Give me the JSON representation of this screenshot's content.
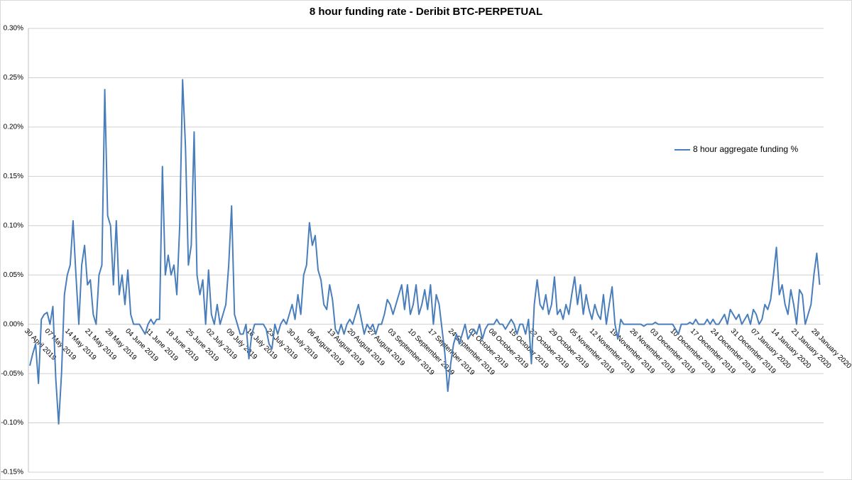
{
  "chart_data": {
    "type": "line",
    "title": "8 hour funding rate - Deribit BTC-PERPETUAL",
    "categories": [
      "30 April 2019",
      null,
      null,
      null,
      null,
      null,
      null,
      "07 May 2019",
      null,
      null,
      null,
      null,
      null,
      null,
      "14 May 2019",
      null,
      null,
      null,
      null,
      null,
      null,
      "21 May 2019",
      null,
      null,
      null,
      null,
      null,
      null,
      "28 May 2019",
      null,
      null,
      null,
      null,
      null,
      null,
      "04 June 2019",
      null,
      null,
      null,
      null,
      null,
      null,
      "11 June 2019",
      null,
      null,
      null,
      null,
      null,
      null,
      "18 June 2019",
      null,
      null,
      null,
      null,
      null,
      null,
      "25 June 2019",
      null,
      null,
      null,
      null,
      null,
      null,
      "02 July 2019",
      null,
      null,
      null,
      null,
      null,
      null,
      "09 July 2019",
      null,
      null,
      null,
      null,
      null,
      null,
      "16 July 2019",
      null,
      null,
      null,
      null,
      null,
      null,
      "23 July 2019",
      null,
      null,
      null,
      null,
      null,
      null,
      "30 July 2019",
      null,
      null,
      null,
      null,
      null,
      null,
      "06 August 2019",
      null,
      null,
      null,
      null,
      null,
      null,
      "13 August 2019",
      null,
      null,
      null,
      null,
      null,
      null,
      "20 August 2019",
      null,
      null,
      null,
      null,
      null,
      null,
      "27 August 2019",
      null,
      null,
      null,
      null,
      null,
      null,
      "03 September 2019",
      null,
      null,
      null,
      null,
      null,
      null,
      "10 September 2019",
      null,
      null,
      null,
      null,
      null,
      null,
      "17 September 2019",
      null,
      null,
      null,
      null,
      null,
      null,
      "24 September 2019",
      null,
      null,
      null,
      null,
      null,
      null,
      "01 October 2019",
      null,
      null,
      null,
      null,
      null,
      null,
      "08 October 2019",
      null,
      null,
      null,
      null,
      null,
      null,
      "15 October 2019",
      null,
      null,
      null,
      null,
      null,
      null,
      "22 October 2019",
      null,
      null,
      null,
      null,
      null,
      null,
      "29 October 2019",
      null,
      null,
      null,
      null,
      null,
      null,
      "05 November 2019",
      null,
      null,
      null,
      null,
      null,
      null,
      "12 November 2019",
      null,
      null,
      null,
      null,
      null,
      null,
      "19 November 2019",
      null,
      null,
      null,
      null,
      null,
      null,
      "26 November 2019",
      null,
      null,
      null,
      null,
      null,
      null,
      "03 December 2019",
      null,
      null,
      null,
      null,
      null,
      null,
      "10 December 2019",
      null,
      null,
      null,
      null,
      null,
      null,
      "17 December 2019",
      null,
      null,
      null,
      null,
      null,
      null,
      "24 December 2019",
      null,
      null,
      null,
      null,
      null,
      null,
      "31 December 2019",
      null,
      null,
      null,
      null,
      null,
      null,
      "07 January 2020",
      null,
      null,
      null,
      null,
      null,
      null,
      "14 January 2020",
      null,
      null,
      null,
      null,
      null,
      null,
      "21 January 2020",
      null,
      null,
      null,
      null,
      null,
      null,
      "28 January 2020",
      null
    ],
    "series": [
      {
        "name": "8 hour aggregate funding %",
        "color": "#4a7ebb",
        "values": [
          -0.042,
          -0.03,
          -0.02,
          -0.06,
          0.005,
          0.01,
          0.012,
          0.0,
          0.018,
          -0.055,
          -0.101,
          -0.05,
          0.03,
          0.05,
          0.06,
          0.105,
          0.05,
          0.0,
          0.06,
          0.08,
          0.04,
          0.045,
          0.01,
          0.0,
          0.05,
          0.06,
          0.238,
          0.11,
          0.1,
          0.04,
          0.105,
          0.03,
          0.05,
          0.02,
          0.055,
          0.01,
          0.0,
          0.0,
          0.0,
          -0.005,
          -0.01,
          0.0,
          0.005,
          0.0,
          0.005,
          0.005,
          0.16,
          0.05,
          0.07,
          0.05,
          0.06,
          0.03,
          0.1,
          0.248,
          0.18,
          0.06,
          0.08,
          0.195,
          0.05,
          0.03,
          0.045,
          0.0,
          0.055,
          0.01,
          0.0,
          0.02,
          0.0,
          0.01,
          0.02,
          0.06,
          0.12,
          0.01,
          0.0,
          -0.01,
          -0.01,
          0.0,
          -0.035,
          -0.01,
          0.0,
          0.0,
          0.0,
          0.0,
          -0.005,
          -0.02,
          -0.025,
          0.0,
          -0.01,
          0.0,
          0.005,
          0.0,
          0.01,
          0.02,
          0.005,
          0.03,
          0.01,
          0.05,
          0.06,
          0.103,
          0.08,
          0.09,
          0.055,
          0.045,
          0.02,
          0.015,
          0.04,
          0.025,
          -0.005,
          -0.01,
          0.0,
          -0.01,
          0.0,
          0.005,
          0.0,
          0.01,
          0.02,
          0.005,
          -0.01,
          0.0,
          -0.005,
          0.0,
          -0.01,
          0.0,
          0.0,
          0.01,
          0.025,
          0.02,
          0.01,
          0.02,
          0.03,
          0.04,
          0.015,
          0.04,
          0.01,
          0.02,
          0.04,
          0.01,
          0.02,
          0.035,
          0.015,
          0.04,
          0.0,
          0.03,
          0.02,
          -0.005,
          -0.03,
          -0.068,
          -0.04,
          -0.02,
          -0.01,
          -0.02,
          -0.01,
          0.0,
          -0.015,
          -0.01,
          -0.005,
          -0.01,
          0.0,
          -0.015,
          -0.005,
          0.0,
          0.0,
          0.0,
          0.005,
          0.0,
          0.0,
          -0.005,
          0.0,
          0.005,
          0.0,
          -0.01,
          0.0,
          0.0,
          -0.01,
          0.005,
          -0.04,
          0.02,
          0.045,
          0.02,
          0.015,
          0.03,
          0.01,
          0.02,
          0.048,
          0.01,
          0.015,
          0.005,
          0.02,
          0.01,
          0.03,
          0.048,
          0.02,
          0.04,
          0.01,
          0.03,
          0.015,
          0.005,
          0.02,
          0.01,
          0.005,
          0.03,
          0.0,
          0.02,
          0.038,
          0.0,
          -0.015,
          0.005,
          0.0,
          0.0,
          0.0,
          0.0,
          0.0,
          0.0,
          0.0,
          -0.002,
          0.0,
          0.0,
          0.0,
          0.002,
          0.0,
          0.0,
          0.0,
          0.0,
          0.0,
          0.0,
          -0.005,
          -0.01,
          0.0,
          0.0,
          0.0,
          0.002,
          0.0,
          0.005,
          0.0,
          0.0,
          0.0,
          0.005,
          0.0,
          0.005,
          0.0,
          0.0,
          0.005,
          0.01,
          0.0,
          0.015,
          0.01,
          0.005,
          0.01,
          0.0,
          0.005,
          0.01,
          0.0,
          0.015,
          0.01,
          0.0,
          0.005,
          0.02,
          0.015,
          0.025,
          0.05,
          0.078,
          0.03,
          0.04,
          0.02,
          0.01,
          0.035,
          0.02,
          0.0,
          0.035,
          0.03,
          0.0,
          0.01,
          0.02,
          0.05,
          0.072,
          0.04
        ]
      }
    ],
    "ylim": [
      -0.15,
      0.3
    ],
    "yticks": [
      {
        "value": -0.15,
        "label": "-0.15%"
      },
      {
        "value": -0.1,
        "label": "-0.10%"
      },
      {
        "value": -0.05,
        "label": "-0.05%"
      },
      {
        "value": 0,
        "label": "0.00%"
      },
      {
        "value": 0.05,
        "label": "0.05%"
      },
      {
        "value": 0.1,
        "label": "0.10%"
      },
      {
        "value": 0.15,
        "label": "0.15%"
      },
      {
        "value": 0.2,
        "label": "0.20%"
      },
      {
        "value": 0.25,
        "label": "0.25%"
      },
      {
        "value": 0.3,
        "label": "0.30%"
      }
    ],
    "grid": true,
    "legend": "right"
  }
}
